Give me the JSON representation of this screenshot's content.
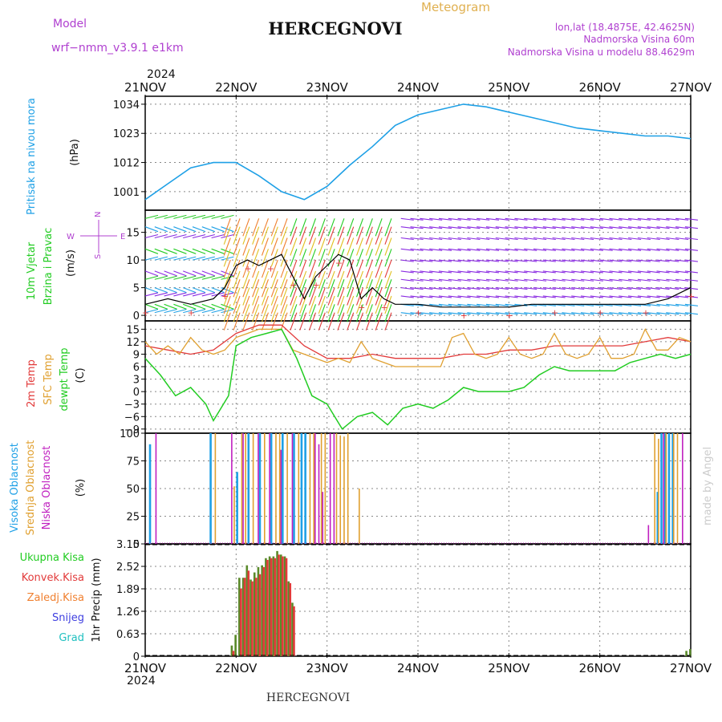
{
  "header": {
    "model_label": "Model",
    "model_name": "wrf−nmm_v3.9.1 e1km",
    "title": "HERCEGNOVI",
    "subtitle": "Meteogram",
    "lonlat": "lon,lat (18.4875E, 42.4625N)",
    "elevation": "Nadmorska Visina 60m",
    "model_elevation": "Nadmorska Visina u modelu 88.4629m",
    "footer_title": "HERCEGNOVI",
    "credit": "made by Angel"
  },
  "time_axis": {
    "year": "2024",
    "labels": [
      "21NOV",
      "22NOV",
      "23NOV",
      "24NOV",
      "25NOV",
      "26NOV",
      "27NOV"
    ],
    "range_hours": [
      0,
      144
    ]
  },
  "colors": {
    "pressure": "#1ea0e6",
    "t2m": "#e23a3a",
    "sfc": "#e0a030",
    "dew": "#22cc22",
    "high_cloud": "#1ea0e6",
    "mid_cloud": "#e0a030",
    "low_cloud": "#c020c0",
    "total_precip": "#22cc22",
    "conv_precip": "#e23a3a",
    "frozen_precip": "#f08030",
    "snow": "#4040e0",
    "hail": "#20c0c0",
    "label_purple": "#b040d0"
  },
  "chart_data": [
    {
      "type": "line",
      "panel": "pressure",
      "title": "",
      "ylabel": "Pritisak na nivou mora",
      "unit": "(hPa)",
      "ylim": [
        994,
        1037
      ],
      "yticks": [
        1001,
        1012,
        1023,
        1034
      ],
      "grid": true,
      "series": [
        {
          "name": "Pritisak na nivou mora",
          "x": [
            0,
            6,
            12,
            18,
            24,
            30,
            36,
            42,
            48,
            54,
            60,
            66,
            72,
            78,
            84,
            90,
            96,
            102,
            108,
            114,
            120,
            126,
            132,
            138,
            144
          ],
          "y": [
            998,
            1004,
            1010,
            1012,
            1012,
            1007,
            1001,
            998,
            1003,
            1011,
            1018,
            1026,
            1030,
            1032,
            1034,
            1033,
            1031,
            1029,
            1027,
            1025,
            1024,
            1023,
            1022,
            1022,
            1021
          ]
        }
      ]
    },
    {
      "type": "line",
      "panel": "wind",
      "title": "",
      "ylabel": "10m Vjetar Brzina i Pravac",
      "unit": "(m/s)",
      "ylim": [
        -1,
        19
      ],
      "yticks": [
        0,
        5,
        10,
        15
      ],
      "grid": true,
      "compass": [
        "N",
        "W",
        "E",
        "S"
      ],
      "series": [
        {
          "name": "speed",
          "x": [
            0,
            6,
            12,
            18,
            21,
            24,
            27,
            30,
            33,
            36,
            39,
            42,
            45,
            48,
            51,
            54,
            57,
            60,
            63,
            66,
            72,
            78,
            84,
            90,
            96,
            102,
            108,
            114,
            120,
            126,
            132,
            138,
            144
          ],
          "y": [
            2,
            3,
            2,
            3,
            5,
            9,
            10,
            9,
            10,
            11,
            7,
            3,
            7,
            9,
            11,
            10,
            3,
            5,
            3,
            2,
            2,
            1.5,
            1.5,
            1.5,
            1.5,
            2,
            2,
            2,
            2,
            2,
            2,
            3,
            5
          ]
        }
      ]
    },
    {
      "type": "line",
      "panel": "temperature",
      "title": "",
      "ylabel": [
        "2m Temp",
        "SFC Temp",
        "dewpt Temp"
      ],
      "unit": "(C)",
      "ylim": [
        -10,
        17
      ],
      "yticks": [
        -9,
        -6,
        -3,
        0,
        3,
        6,
        9,
        12,
        15
      ],
      "grid": true,
      "series": [
        {
          "name": "2m Temp",
          "x": [
            0,
            6,
            12,
            18,
            24,
            30,
            36,
            42,
            48,
            54,
            60,
            66,
            72,
            78,
            84,
            90,
            96,
            102,
            108,
            114,
            120,
            126,
            132,
            138,
            144
          ],
          "y": [
            11,
            10,
            9,
            10,
            14,
            16,
            16,
            11,
            8,
            8,
            9,
            8,
            8,
            8,
            9,
            9,
            10,
            10,
            11,
            11,
            11,
            11,
            12,
            13,
            12
          ]
        },
        {
          "name": "SFC Temp",
          "x": [
            0,
            3,
            6,
            9,
            12,
            15,
            18,
            21,
            24,
            27,
            30,
            33,
            36,
            39,
            42,
            45,
            48,
            51,
            54,
            57,
            60,
            63,
            66,
            69,
            72,
            75,
            78,
            81,
            84,
            87,
            90,
            93,
            96,
            99,
            102,
            105,
            108,
            111,
            114,
            117,
            120,
            123,
            126,
            129,
            132,
            135,
            138,
            141,
            144
          ],
          "y": [
            12,
            9,
            11,
            9,
            13,
            10,
            9,
            10,
            13,
            14,
            15,
            15,
            15,
            10,
            9,
            8,
            7,
            8,
            7,
            12,
            8,
            7,
            6,
            6,
            6,
            6,
            6,
            13,
            14,
            9,
            8,
            9,
            13,
            9,
            8,
            9,
            14,
            9,
            8,
            9,
            13,
            8,
            8,
            9,
            15,
            10,
            10,
            13,
            12
          ]
        },
        {
          "name": "dewpt Temp",
          "x": [
            0,
            4,
            8,
            12,
            16,
            18,
            22,
            24,
            28,
            32,
            36,
            40,
            44,
            48,
            52,
            56,
            60,
            64,
            68,
            72,
            76,
            80,
            84,
            88,
            92,
            96,
            100,
            104,
            108,
            112,
            116,
            120,
            124,
            128,
            132,
            136,
            140,
            144
          ],
          "y": [
            8,
            4,
            -1,
            1,
            -3,
            -7,
            -1,
            11,
            13,
            14,
            15,
            8,
            -1,
            -3,
            -9,
            -6,
            -5,
            -8,
            -4,
            -3,
            -4,
            -2,
            1,
            0,
            0,
            0,
            1,
            4,
            6,
            5,
            5,
            5,
            5,
            7,
            8,
            9,
            8,
            9
          ]
        }
      ]
    },
    {
      "type": "bar",
      "panel": "cloud",
      "title": "",
      "ylabel": [
        "Visoka Oblacnost",
        "Srednja Oblacnost",
        "Niska Oblacnost"
      ],
      "unit": "(%)",
      "ylim": [
        0,
        100
      ],
      "yticks": [
        0,
        25,
        50,
        75,
        100
      ],
      "grid": true,
      "series": [
        {
          "name": "Visoka Oblacnost",
          "x": [
            1,
            17,
            24,
            27,
            30,
            33,
            36,
            39,
            41,
            42,
            135,
            136,
            137,
            138,
            139
          ],
          "y": [
            90,
            100,
            65,
            100,
            100,
            100,
            100,
            100,
            100,
            100,
            47,
            100,
            100,
            100,
            100
          ]
        },
        {
          "name": "Srednja Oblacnost",
          "x": [
            18,
            23,
            25,
            26,
            28,
            31,
            34,
            35,
            37,
            40,
            43,
            44,
            46,
            47,
            50,
            51,
            52,
            53,
            56,
            134,
            135,
            137,
            139,
            140
          ],
          "y": [
            100,
            52,
            100,
            100,
            100,
            100,
            100,
            100,
            100,
            100,
            100,
            100,
            100,
            100,
            100,
            98,
            97,
            100,
            50,
            100,
            95,
            100,
            100,
            100
          ]
        },
        {
          "name": "Niska Oblacnost",
          "x": [
            2,
            22,
            25,
            29,
            32,
            35,
            38,
            44,
            45,
            46,
            48,
            49,
            132,
            136,
            141
          ],
          "y": [
            100,
            100,
            100,
            100,
            100,
            85,
            100,
            100,
            90,
            47,
            100,
            100,
            17,
            100,
            100
          ]
        }
      ]
    },
    {
      "type": "bar",
      "panel": "precip",
      "title": "",
      "ylabel": "1hr Precip",
      "unit": "(mm)",
      "ylim": [
        0,
        3.15
      ],
      "yticks": [
        0,
        0.63,
        1.26,
        1.89,
        2.52,
        3.15
      ],
      "legend": [
        "Ukupna Kisa",
        "Konvek.Kisa",
        "Zaledj.Kisa",
        "Snijeg",
        "Grad"
      ],
      "grid": true,
      "series": [
        {
          "name": "Ukupna Kisa",
          "x": [
            23,
            24,
            25,
            26,
            27,
            28,
            29,
            30,
            31,
            32,
            33,
            34,
            35,
            36,
            37,
            38,
            39,
            143,
            144
          ],
          "y": [
            0.3,
            0.6,
            2.2,
            2.2,
            2.55,
            2.15,
            2.35,
            2.5,
            2.55,
            2.75,
            2.8,
            2.8,
            2.95,
            2.85,
            2.8,
            2.1,
            1.5,
            0.15,
            0.2
          ]
        },
        {
          "name": "Konvek.Kisa",
          "x": [
            23,
            25,
            26,
            27,
            28,
            29,
            30,
            31,
            32,
            33,
            34,
            35,
            36,
            37,
            38,
            39
          ],
          "y": [
            0.15,
            1.9,
            2.2,
            2.4,
            2.1,
            2.2,
            2.3,
            2.5,
            2.7,
            2.75,
            2.75,
            2.85,
            2.8,
            2.75,
            2.05,
            1.4
          ]
        }
      ]
    }
  ]
}
